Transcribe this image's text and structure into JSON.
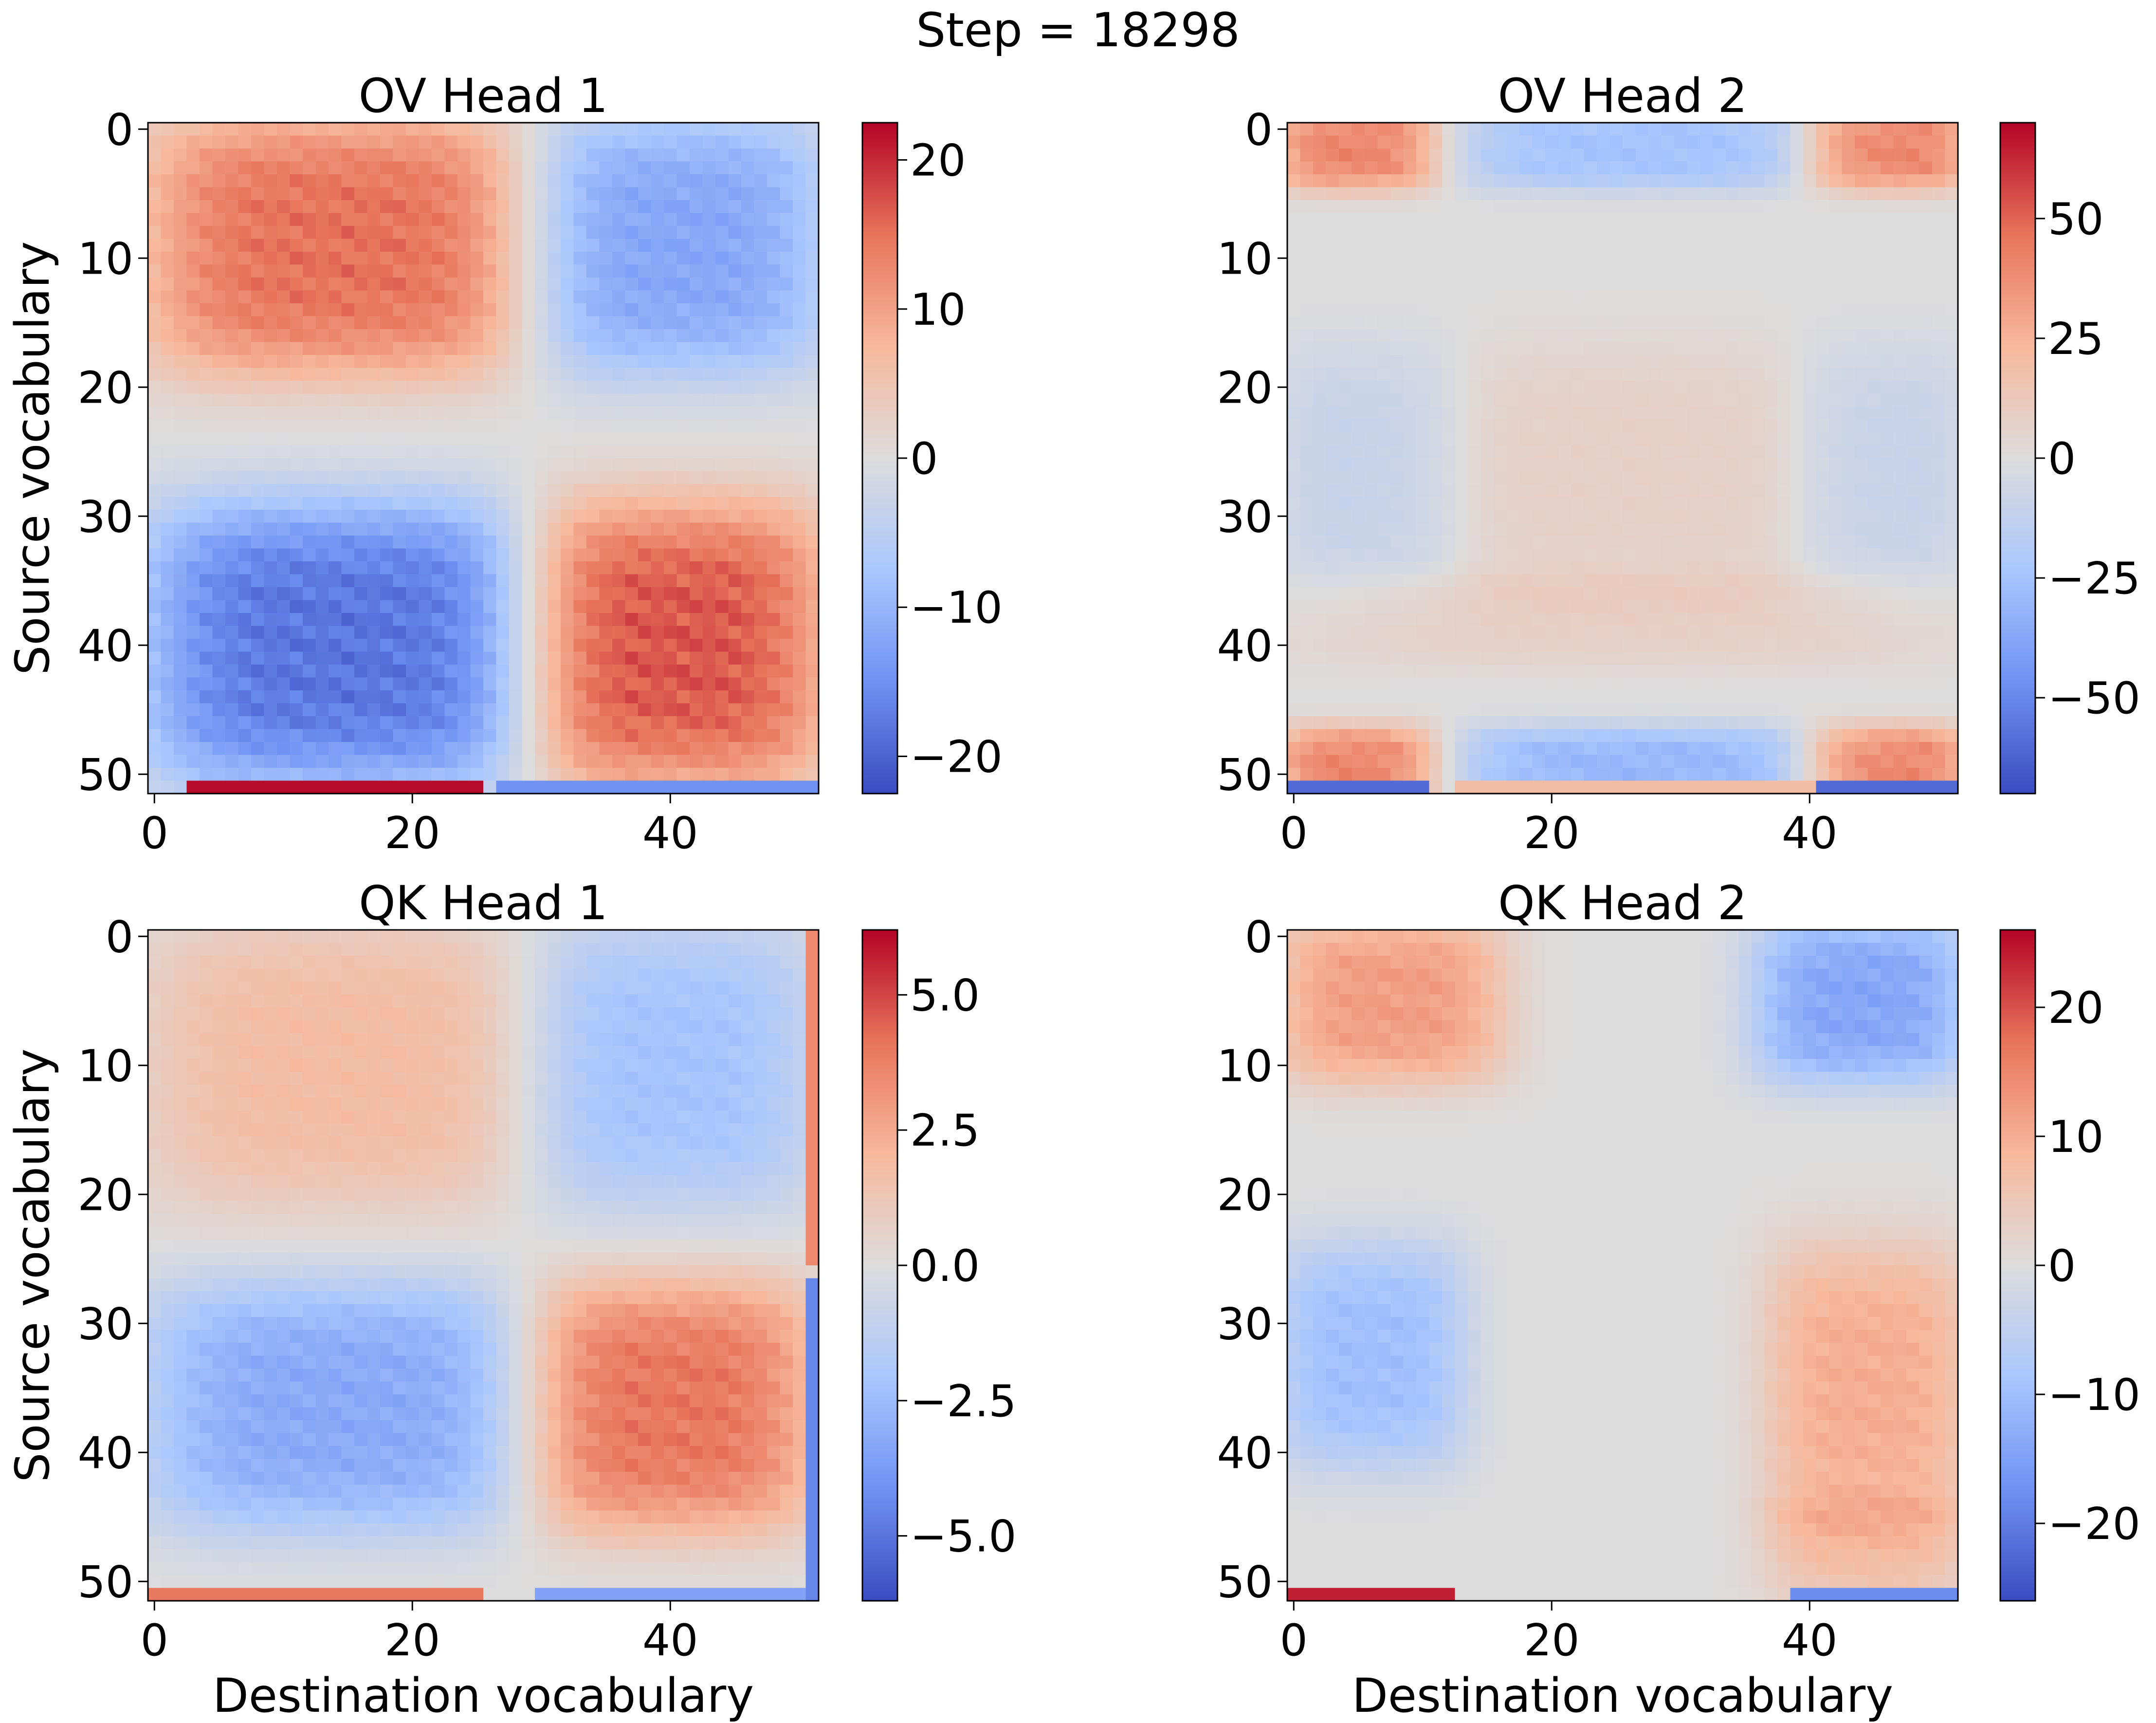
{
  "figure": {
    "suptitle": "Step = 18298",
    "colormap": {
      "name": "coolwarm",
      "stops": [
        "#3b4cc0",
        "#6f92f3",
        "#aac7fd",
        "#dddcdc",
        "#f7b89c",
        "#e7745b",
        "#b40426"
      ]
    }
  },
  "chart_data": [
    {
      "type": "heatmap",
      "title": "OV Head 1",
      "xlabel": "",
      "ylabel": "Source vocabulary",
      "xticks": [
        "0",
        "20",
        "40"
      ],
      "yticks": [
        "0",
        "10",
        "20",
        "30",
        "40",
        "50"
      ],
      "size": 52,
      "vmin": -22.5,
      "vmax": 22.5,
      "colorbar_ticks": [
        -20,
        -10,
        0,
        10,
        20
      ],
      "colorbar_labels": [
        "−20",
        "−10",
        "0",
        "10",
        "20"
      ],
      "pattern": {
        "blocks": [
          [
            0,
            18,
            0,
            28,
            15
          ],
          [
            0,
            18,
            30,
            51,
            -12
          ],
          [
            30,
            50,
            0,
            28,
            -18
          ],
          [
            30,
            50,
            30,
            51,
            17
          ]
        ],
        "last_row": [
          [
            3,
            25,
            22
          ],
          [
            27,
            51,
            -15
          ]
        ],
        "last_col": []
      }
    },
    {
      "type": "heatmap",
      "title": "OV Head 2",
      "xlabel": "",
      "ylabel": "",
      "xticks": [
        "0",
        "20",
        "40"
      ],
      "yticks": [
        "0",
        "10",
        "20",
        "30",
        "40",
        "50"
      ],
      "size": 52,
      "vmin": -70,
      "vmax": 70,
      "colorbar_ticks": [
        -50,
        -25,
        0,
        25,
        50
      ],
      "colorbar_labels": [
        "−50",
        "−25",
        "0",
        "25",
        "50"
      ],
      "pattern": {
        "blocks": [
          [
            0,
            3,
            0,
            10,
            40
          ],
          [
            0,
            3,
            41,
            51,
            40
          ],
          [
            0,
            3,
            13,
            40,
            -25
          ],
          [
            48,
            51,
            0,
            10,
            40
          ],
          [
            48,
            51,
            41,
            51,
            40
          ],
          [
            48,
            51,
            13,
            40,
            -30
          ],
          [
            18,
            35,
            12,
            40,
            8
          ],
          [
            18,
            35,
            0,
            12,
            -10
          ],
          [
            18,
            35,
            40,
            51,
            -10
          ],
          [
            36,
            40,
            0,
            51,
            8
          ]
        ],
        "last_row": [
          [
            0,
            10,
            -60
          ],
          [
            13,
            40,
            20
          ],
          [
            41,
            51,
            -60
          ]
        ],
        "last_col": []
      }
    },
    {
      "type": "heatmap",
      "title": "QK Head 1",
      "xlabel": "Destination vocabulary",
      "ylabel": "Source vocabulary",
      "xticks": [
        "0",
        "20",
        "40"
      ],
      "yticks": [
        "0",
        "10",
        "20",
        "30",
        "40",
        "50"
      ],
      "size": 52,
      "vmin": -6.2,
      "vmax": 6.2,
      "colorbar_ticks": [
        -5,
        -2.5,
        0,
        2.5,
        5
      ],
      "colorbar_labels": [
        "−5.0",
        "−2.5",
        "0.0",
        "2.5",
        "5.0"
      ],
      "pattern": {
        "blocks": [
          [
            0,
            20,
            0,
            28,
            1.8
          ],
          [
            0,
            20,
            30,
            50,
            -2.2
          ],
          [
            28,
            45,
            0,
            28,
            -3.2
          ],
          [
            28,
            45,
            30,
            50,
            4.0
          ]
        ],
        "last_row": [
          [
            0,
            25,
            4.0
          ],
          [
            30,
            50,
            -3.5
          ]
        ],
        "last_col": [
          [
            0,
            25,
            3.5
          ],
          [
            27,
            51,
            -4.5
          ]
        ]
      }
    },
    {
      "type": "heatmap",
      "title": "QK Head 2",
      "xlabel": "Destination vocabulary",
      "ylabel": "",
      "xticks": [
        "0",
        "20",
        "40"
      ],
      "yticks": [
        "0",
        "10",
        "20",
        "30",
        "40",
        "50"
      ],
      "size": 52,
      "vmin": -26,
      "vmax": 26,
      "colorbar_ticks": [
        -20,
        -10,
        0,
        10,
        20
      ],
      "colorbar_labels": [
        "−20",
        "−10",
        "0",
        "10",
        "20"
      ],
      "pattern": {
        "blocks": [
          [
            0,
            10,
            0,
            15,
            12
          ],
          [
            0,
            10,
            37,
            51,
            -14
          ],
          [
            25,
            40,
            0,
            12,
            -10
          ],
          [
            25,
            45,
            38,
            51,
            10
          ],
          [
            45,
            50,
            38,
            51,
            6
          ]
        ],
        "last_row": [
          [
            0,
            12,
            24
          ],
          [
            39,
            51,
            -18
          ]
        ],
        "last_col": []
      }
    }
  ]
}
